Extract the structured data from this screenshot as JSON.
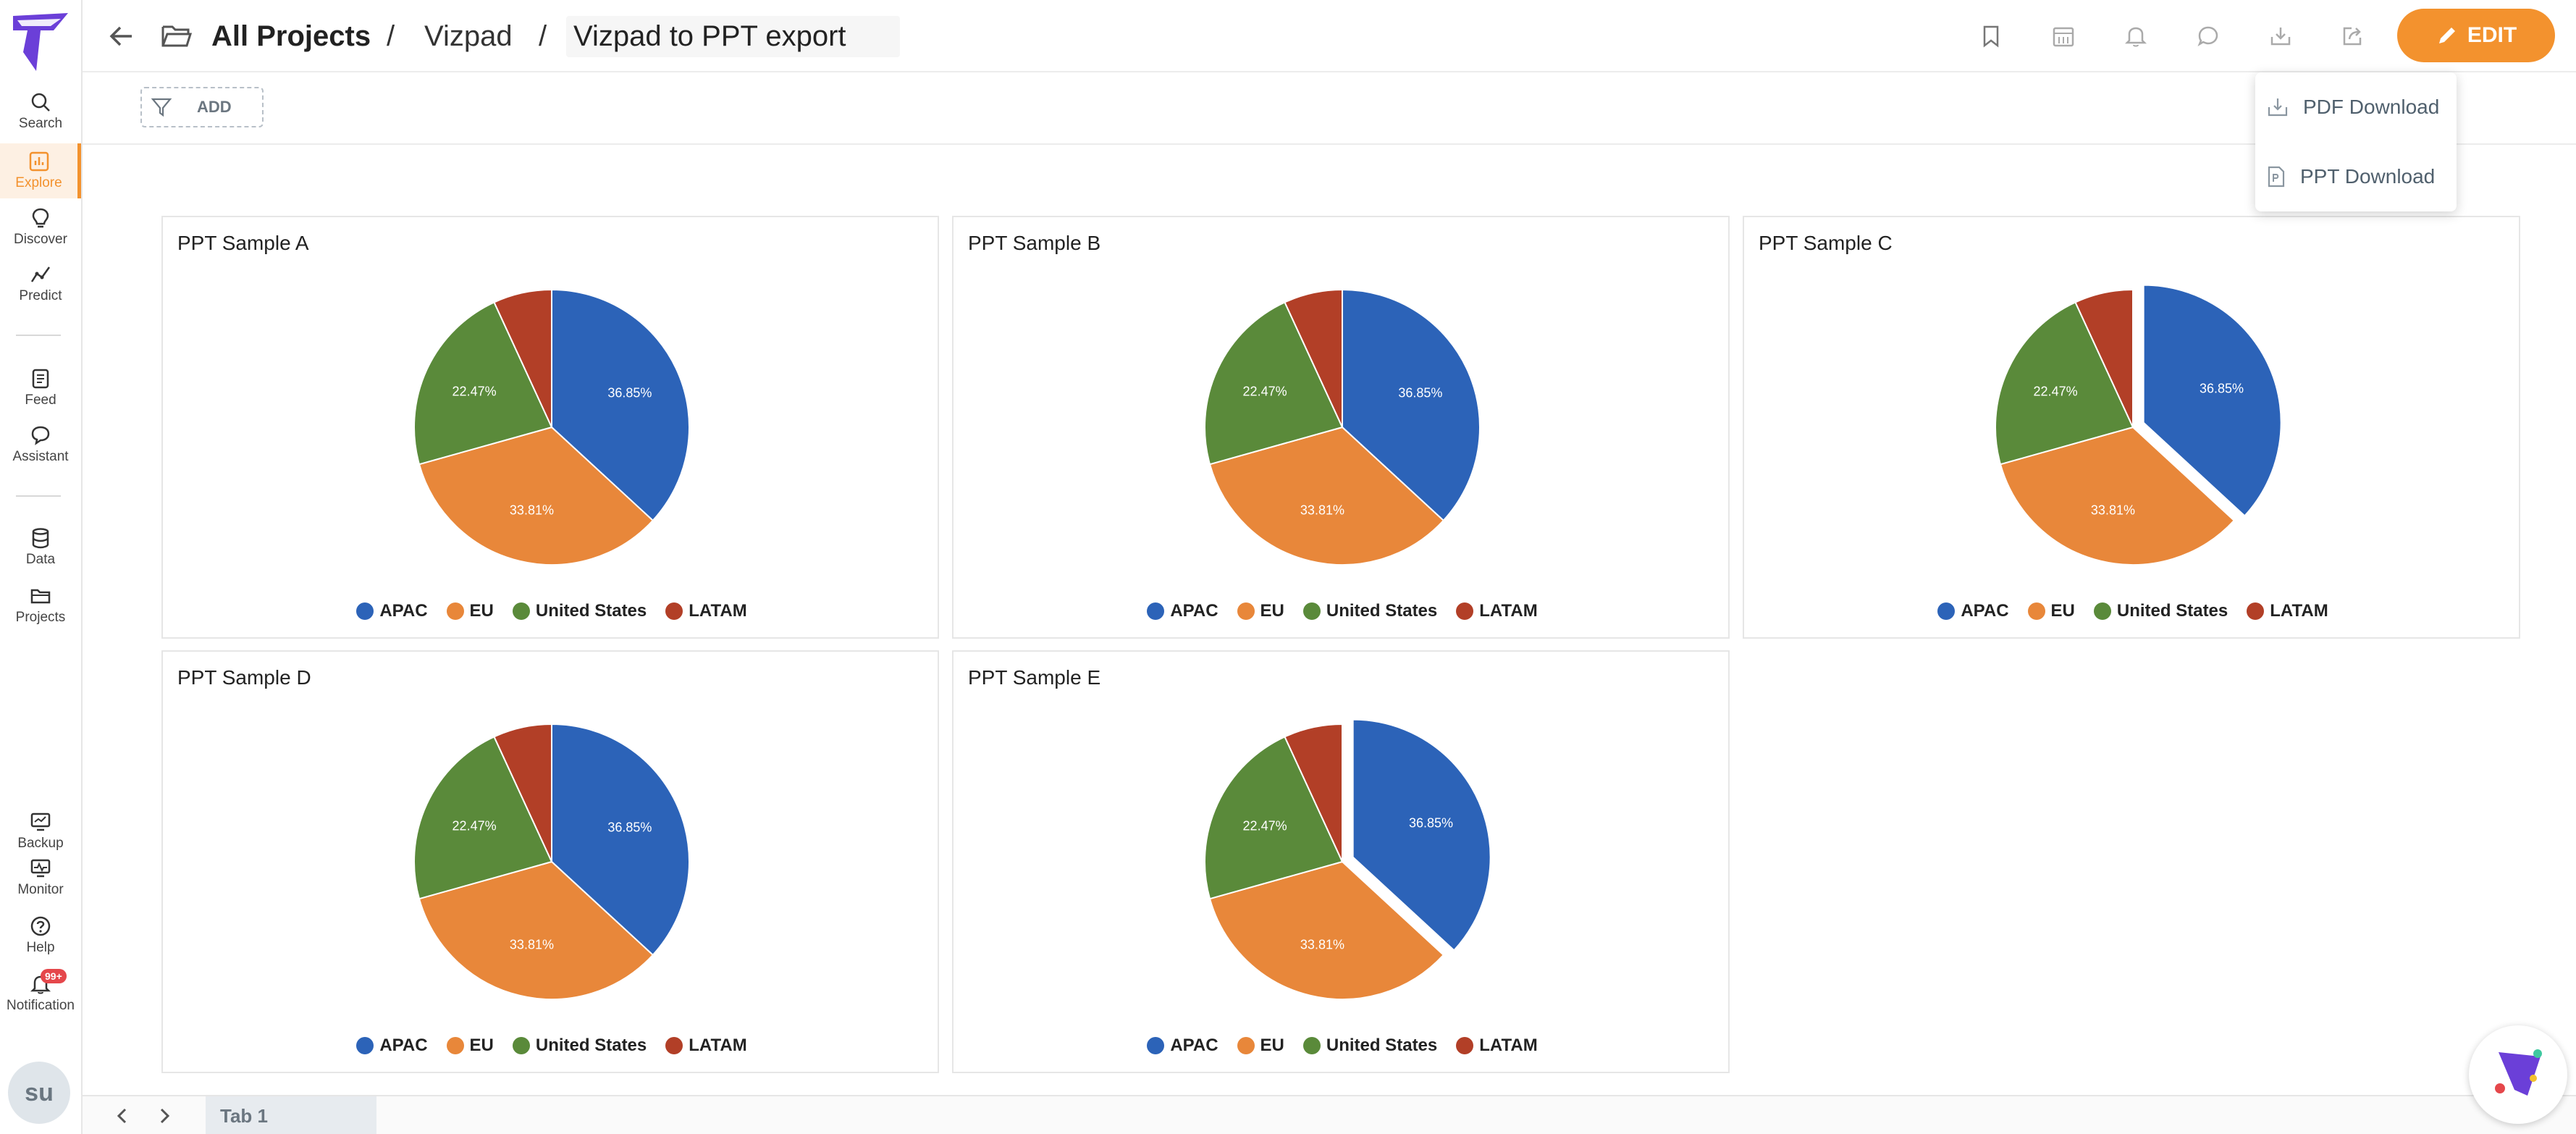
{
  "sidebar": {
    "items": [
      {
        "label": "Search",
        "icon": "search-icon"
      },
      {
        "label": "Explore",
        "icon": "explore-icon",
        "active": true
      },
      {
        "label": "Discover",
        "icon": "discover-icon"
      },
      {
        "label": "Predict",
        "icon": "predict-icon"
      },
      {
        "label": "Feed",
        "icon": "feed-icon"
      },
      {
        "label": "Assistant",
        "icon": "assistant-icon"
      },
      {
        "label": "Data",
        "icon": "database-icon"
      },
      {
        "label": "Projects",
        "icon": "folder-icon"
      },
      {
        "label": "Backup",
        "icon": "backup-icon"
      },
      {
        "label": "Monitor",
        "icon": "monitor-icon"
      },
      {
        "label": "Help",
        "icon": "help-icon"
      },
      {
        "label": "Notification",
        "icon": "bell-icon",
        "badge": "99+"
      }
    ],
    "avatar": "su"
  },
  "header": {
    "crumb_root": "All Projects",
    "crumb_sep1": "/",
    "crumb_mid": "Vizpad",
    "crumb_sep2": "/",
    "title": "Vizpad to PPT export",
    "edit_label": "EDIT",
    "accent": "#f3922e"
  },
  "filter": {
    "add_label": "ADD"
  },
  "dropdown": {
    "items": [
      {
        "label": "PDF Download",
        "icon": "pdf-download-icon"
      },
      {
        "label": "PPT Download",
        "icon": "ppt-file-icon"
      }
    ]
  },
  "tabs": [
    {
      "label": "Tab 1",
      "active": true
    }
  ],
  "chart_data": [
    {
      "type": "pie",
      "title": "PPT Sample A",
      "categories": [
        "APAC",
        "EU",
        "United States",
        "LATAM"
      ],
      "values": [
        36.85,
        33.81,
        22.47,
        6.87
      ],
      "labels": [
        "36.85%",
        "33.81%",
        "22.47%",
        ""
      ],
      "colors": [
        "#2c63b8",
        "#e8873a",
        "#5a8a3a",
        "#b23f27"
      ],
      "exploded": false,
      "legend": "bottom"
    },
    {
      "type": "pie",
      "title": "PPT Sample B",
      "categories": [
        "APAC",
        "EU",
        "United States",
        "LATAM"
      ],
      "values": [
        36.85,
        33.81,
        22.47,
        6.87
      ],
      "labels": [
        "36.85%",
        "33.81%",
        "22.47%",
        ""
      ],
      "colors": [
        "#2c63b8",
        "#e8873a",
        "#5a8a3a",
        "#b23f27"
      ],
      "exploded": false,
      "legend": "bottom"
    },
    {
      "type": "pie",
      "title": "PPT Sample C",
      "categories": [
        "APAC",
        "EU",
        "United States",
        "LATAM"
      ],
      "values": [
        36.85,
        33.81,
        22.47,
        6.87
      ],
      "labels": [
        "36.85%",
        "33.81%",
        "22.47%",
        ""
      ],
      "colors": [
        "#2c63b8",
        "#e8873a",
        "#5a8a3a",
        "#b23f27"
      ],
      "exploded": true,
      "legend": "bottom"
    },
    {
      "type": "pie",
      "title": "PPT Sample D",
      "categories": [
        "APAC",
        "EU",
        "United States",
        "LATAM"
      ],
      "values": [
        36.85,
        33.81,
        22.47,
        6.87
      ],
      "labels": [
        "36.85%",
        "33.81%",
        "22.47%",
        ""
      ],
      "colors": [
        "#2c63b8",
        "#e8873a",
        "#5a8a3a",
        "#b23f27"
      ],
      "exploded": false,
      "legend": "bottom"
    },
    {
      "type": "pie",
      "title": "PPT Sample E",
      "categories": [
        "APAC",
        "EU",
        "United States",
        "LATAM"
      ],
      "values": [
        36.85,
        33.81,
        22.47,
        6.87
      ],
      "labels": [
        "36.85%",
        "33.81%",
        "22.47%",
        ""
      ],
      "colors": [
        "#2c63b8",
        "#e8873a",
        "#5a8a3a",
        "#b23f27"
      ],
      "exploded": true,
      "legend": "bottom"
    }
  ]
}
